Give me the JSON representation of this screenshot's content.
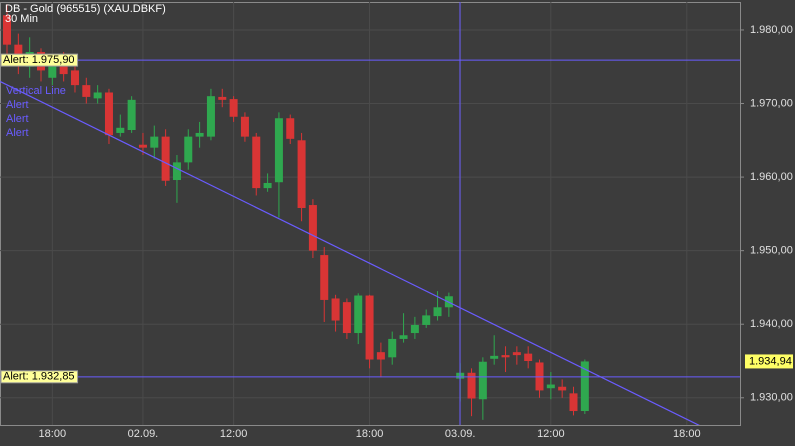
{
  "chart_data": {
    "type": "candlestick",
    "title": "DB - Gold (965515) (XAU.DBKF)",
    "subtitle": "30 Min",
    "categories": [
      null,
      null,
      null,
      null,
      "18:00",
      null,
      null,
      null,
      null,
      null,
      null,
      null,
      "02.09.",
      null,
      null,
      null,
      null,
      null,
      null,
      null,
      "12:00",
      null,
      null,
      null,
      null,
      null,
      null,
      null,
      null,
      null,
      null,
      null,
      "18:00",
      null,
      null,
      null,
      null,
      null,
      null,
      null,
      "03.09.",
      null,
      null,
      null,
      null,
      null,
      null,
      null,
      "12:00",
      null,
      null,
      null,
      null,
      null,
      null,
      null,
      null,
      null,
      null,
      null,
      "18:00"
    ],
    "open": [
      1982.0,
      1978.0,
      1975.0,
      1977.0,
      1973.5,
      1975.5,
      1974.5,
      1972.5,
      1970.7,
      1971.5,
      1966.0,
      1966.4,
      1964.4,
      1964.0,
      1965.5,
      1959.6,
      1962.0,
      1965.5,
      1965.5,
      1970.9,
      1970.6,
      1968.2,
      1965.5,
      1958.5,
      1959.3,
      1968.0,
      1965.0,
      1956.2,
      1949.4,
      1943.5,
      1943.0,
      1938.8,
      1943.9,
      1936.2,
      1935.5,
      1938.0,
      1938.8,
      1939.9,
      1941.1,
      1942.3,
      1932.6,
      1933.4,
      1929.8,
      1935.3,
      1935.8,
      1936.2,
      1936.0,
      1934.8,
      1931.3,
      1931.5,
      1930.6,
      1928.2,
      null,
      null,
      null,
      null,
      null,
      null,
      null,
      null,
      null
    ],
    "high": [
      1983.5,
      1979.5,
      1979.0,
      1977.5,
      1976.0,
      1977.0,
      1975.5,
      1973.5,
      1972.5,
      1972.0,
      1968.5,
      1971.0,
      1966.0,
      1967.0,
      1966.5,
      1963.0,
      1966.5,
      1967.5,
      1972.0,
      1972.0,
      1971.0,
      1968.8,
      1966.0,
      1960.5,
      1968.8,
      1968.5,
      1966.0,
      1957.0,
      1950.5,
      1944.0,
      1943.5,
      1944.2,
      1944.0,
      1937.5,
      1939.0,
      1941.5,
      1941.0,
      1942.0,
      1944.5,
      1944.3,
      1934.7,
      1934.0,
      1935.5,
      1938.5,
      1937.0,
      1937.0,
      1937.0,
      1935.2,
      1933.5,
      1932.5,
      1931.5,
      1935.2,
      null,
      null,
      null,
      null,
      null,
      null,
      null,
      null,
      null
    ],
    "low": [
      1976.0,
      1974.0,
      1973.5,
      1973.0,
      1972.5,
      1973.0,
      1971.5,
      1970.0,
      1970.0,
      1964.5,
      1965.5,
      1966.0,
      1963.0,
      1962.5,
      1958.8,
      1956.5,
      1961.0,
      1964.0,
      1965.0,
      1969.5,
      1967.5,
      1964.8,
      1957.5,
      1958.0,
      1954.5,
      1964.5,
      1954.0,
      1949.0,
      1940.3,
      1939.0,
      1938.0,
      1937.3,
      1934.0,
      1932.8,
      1934.5,
      1937.5,
      1938.0,
      1939.5,
      1940.5,
      1941.0,
      1929.5,
      1927.5,
      1927.0,
      1934.5,
      1933.5,
      1934.5,
      1934.0,
      1930.0,
      1929.8,
      1930.0,
      1927.6,
      1927.8,
      null,
      null,
      null,
      null,
      null,
      null,
      null,
      null,
      null
    ],
    "close": [
      1978.0,
      1975.5,
      1977.0,
      1974.5,
      1975.2,
      1974.0,
      1972.5,
      1970.9,
      1971.5,
      1965.7,
      1966.7,
      1970.5,
      1964.0,
      1965.5,
      1959.5,
      1962.0,
      1965.5,
      1966.0,
      1971.0,
      1970.5,
      1968.2,
      1965.5,
      1958.5,
      1959.2,
      1968.0,
      1965.2,
      1955.8,
      1950.0,
      1943.3,
      1940.5,
      1938.8,
      1943.9,
      1935.2,
      1935.2,
      1938.0,
      1938.5,
      1939.9,
      1941.2,
      1942.3,
      1943.8,
      1933.4,
      1929.9,
      1934.9,
      1935.7,
      1935.5,
      1935.8,
      1935.0,
      1931.0,
      1931.8,
      1931.0,
      1928.2,
      1934.94,
      null,
      null,
      null,
      null,
      null,
      null,
      null,
      null,
      null
    ],
    "up_color": "#2fa84f",
    "down_color": "#d93535",
    "ylim": [
      1926.3,
      1983.8
    ],
    "yticks": [
      {
        "value": 1930,
        "label": "1.930,00"
      },
      {
        "value": 1940,
        "label": "1.940,00"
      },
      {
        "value": 1950,
        "label": "1.950,00"
      },
      {
        "value": 1960,
        "label": "1.960,00"
      },
      {
        "value": 1970,
        "label": "1.970,00"
      },
      {
        "value": 1980,
        "label": "1.980,00"
      }
    ],
    "grid": true,
    "alerts": [
      {
        "value": 1975.9,
        "label": "Alert: 1.975,90"
      },
      {
        "value": 1932.85,
        "label": "Alert: 1.932,85"
      }
    ],
    "last_price": {
      "value": 1934.94,
      "label": "1.934,94"
    },
    "trend_line": {
      "x": [
        -0.62,
        63.8
      ],
      "y": [
        1973.0,
        1924.2
      ]
    },
    "line_color": "#6a5cff",
    "drawing_labels": [
      "Vertical Line",
      "Alert",
      "Alert",
      "Alert"
    ]
  }
}
